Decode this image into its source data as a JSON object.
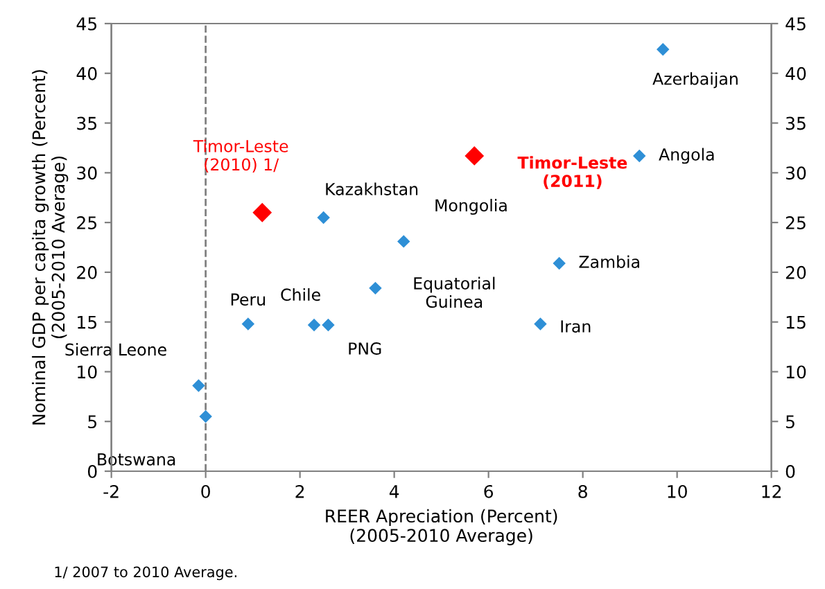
{
  "chart_data": {
    "type": "scatter",
    "xlabel": "REER Apreciation (Percent)\n(2005-2010 Average)",
    "ylabel": "Nominal GDP per capita growth (Percent)\n(2005-2010 Average)",
    "xlim": [
      -2,
      12
    ],
    "xticks": [
      -2,
      0,
      2,
      4,
      6,
      8,
      10,
      12
    ],
    "ylim": [
      0,
      45
    ],
    "yticks": [
      0,
      5,
      10,
      15,
      20,
      25,
      30,
      35,
      40,
      45
    ],
    "y2lim": [
      0,
      45
    ],
    "y2ticks": [
      0,
      5,
      10,
      15,
      20,
      25,
      30,
      35,
      40,
      45
    ],
    "grid": false,
    "marker": "diamond",
    "series": [
      {
        "color": "#2e8fd6",
        "x": [
          9.7,
          9.2,
          2.5,
          4.2,
          7.5,
          3.6,
          0.9,
          2.3,
          2.6,
          7.1,
          -0.15,
          0.0
        ],
        "values": [
          42.4,
          31.7,
          25.5,
          23.1,
          20.9,
          18.4,
          14.8,
          14.7,
          14.7,
          14.8,
          8.6,
          5.5
        ]
      },
      {
        "color": "#ff0000",
        "x": [
          5.7,
          1.2
        ],
        "values": [
          31.7,
          26.0
        ]
      }
    ],
    "ref_lines": [
      {
        "axis": "x",
        "value": 0,
        "color": "#808080",
        "line_style": "dashed"
      }
    ],
    "annotations": [
      {
        "text": "Azerbaijan",
        "x": 9.7,
        "y": 42.4
      },
      {
        "text": "Angola",
        "x": 9.2,
        "y": 31.7
      },
      {
        "text": "Timor-Leste\n(2011)",
        "x": 5.7,
        "y": 31.7
      },
      {
        "text": "Timor-Leste\n(2010) 1/",
        "x": 1.2,
        "y": 26.0
      },
      {
        "text": "Kazakhstan",
        "x": 2.5,
        "y": 25.5
      },
      {
        "text": "Mongolia",
        "x": 4.2,
        "y": 23.1
      },
      {
        "text": "Zambia",
        "x": 7.5,
        "y": 20.9
      },
      {
        "text": "Equatorial\nGuinea",
        "x": 3.6,
        "y": 18.4
      },
      {
        "text": "Peru",
        "x": 0.9,
        "y": 14.8
      },
      {
        "text": "Chile",
        "x": 2.3,
        "y": 14.7
      },
      {
        "text": "PNG",
        "x": 2.6,
        "y": 14.7
      },
      {
        "text": "Iran",
        "x": 7.1,
        "y": 14.8
      },
      {
        "text": "Sierra Leone",
        "x": -0.15,
        "y": 8.6
      },
      {
        "text": "Botswana",
        "x": 0.0,
        "y": 5.5
      },
      "1/ 2007 to 2010 Average."
    ]
  }
}
